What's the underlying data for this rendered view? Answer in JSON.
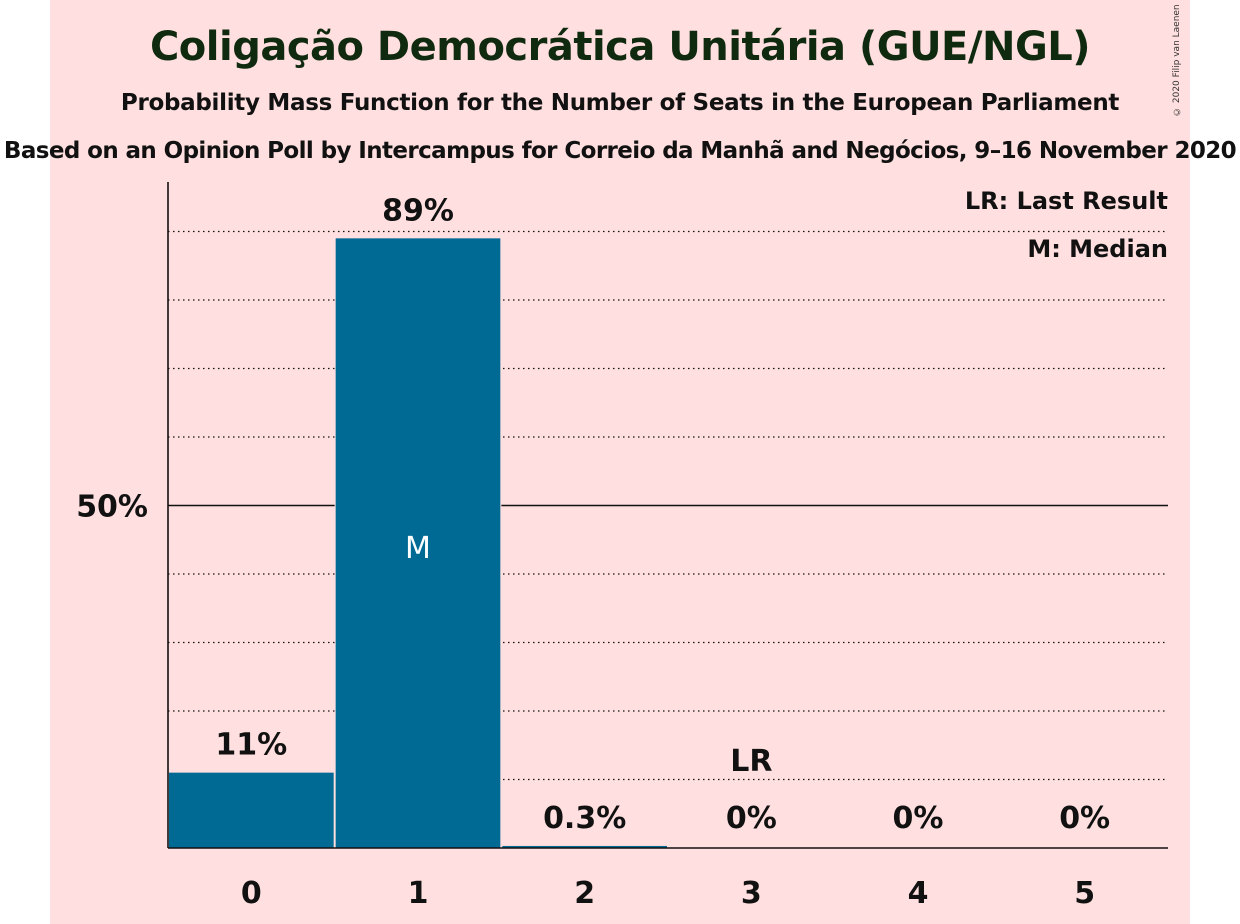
{
  "title": "Coligação Democrática Unitária (GUE/NGL)",
  "subtitle": "Probability Mass Function for the Number of Seats in the European Parliament",
  "subtitle2": "Based on an Opinion Poll by Intercampus for Correio da Manhã and Negócios, 9–16 November 2020",
  "copyright": "© 2020 Filip van Laenen",
  "colors": {
    "background": "#ffdfdf",
    "bar": "#006994",
    "text": "#111111"
  },
  "chart_data": {
    "type": "bar",
    "categories": [
      "0",
      "1",
      "2",
      "3",
      "4",
      "5"
    ],
    "values": [
      11,
      89,
      0.3,
      0,
      0,
      0
    ],
    "value_labels": [
      "11%",
      "89%",
      "0.3%",
      "0%",
      "0%",
      "0%"
    ],
    "ylim": [
      0,
      100
    ],
    "ytick_label": "50%",
    "ytick_value": 50,
    "grid_values": [
      10,
      20,
      30,
      40,
      60,
      70,
      80,
      90
    ],
    "median_category": "1",
    "median_label": "M",
    "last_result_category": "3",
    "last_result_label": "LR",
    "legend": [
      "LR: Last Result",
      "M: Median"
    ],
    "legend_position": "top-right"
  }
}
